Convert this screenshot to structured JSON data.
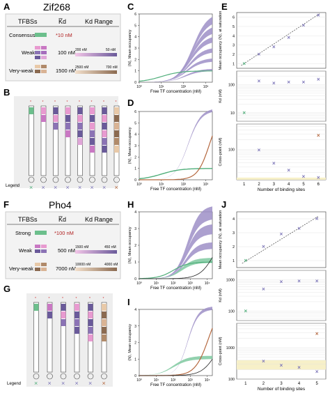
{
  "panel_letters": [
    "A",
    "B",
    "C",
    "D",
    "E",
    "F",
    "G",
    "H",
    "I",
    "J"
  ],
  "top": {
    "protein": "Zif268",
    "table": {
      "col_tfbs": "TFBSs",
      "col_kd": "K̅d",
      "col_range": "Kd Range",
      "rows": [
        {
          "name": "Consensus",
          "kd": "*10 nM",
          "range": ""
        },
        {
          "name": "Weak",
          "kd": "100 nM",
          "range_left": "200 nM",
          "range_right": "50 nM"
        },
        {
          "name": "Very-weak",
          "kd": "1500 nM",
          "range_left": "2500 nM",
          "range_right": "700 nM"
        }
      ]
    },
    "legend_label": "Legend",
    "legend_marks": [
      "×",
      "×",
      "×",
      "×",
      "×",
      "×",
      "×",
      "×"
    ]
  },
  "bottom": {
    "protein": "Pho4",
    "table": {
      "col_tfbs": "TFBSs",
      "col_kd": "K̅d",
      "col_range": "Kd Range",
      "rows": [
        {
          "name": "Strong",
          "kd": "*100 nM",
          "range": ""
        },
        {
          "name": "Weak",
          "kd": "500 nM",
          "range_left": "1500 nM",
          "range_right": "450 nM"
        },
        {
          "name": "Very-weak",
          "kd": "7000 nM",
          "range_left": "10000 nM",
          "range_right": "4000 nM"
        }
      ]
    },
    "legend_label": "Legend",
    "legend_marks": [
      "×",
      "×",
      "×",
      "×",
      "×",
      "×"
    ]
  },
  "colors": {
    "consensus": "#6cbf8c",
    "weak_dark": "#6a5a9a",
    "weak_light": "#e89ad0",
    "vweak_dark": "#8b6a50",
    "vweak_light": "#e8c9a8",
    "curve": "#9d8fc7",
    "green": "#4fae7a",
    "brown": "#b5683f",
    "marker": "#7b74b8"
  },
  "chart_data": [
    {
      "panel": "C",
      "type": "line",
      "ylabel": "⟨N⟩, Mean occupancy",
      "xlabel": "Free TF concentration (nM)",
      "x_scale": "log",
      "xlim": [
        1,
        2000
      ],
      "ylim": [
        0,
        6
      ],
      "xticks": [
        "10⁰",
        "10¹",
        "10²",
        "10³"
      ],
      "yticks": [
        "0",
        "1",
        "2",
        "3",
        "4",
        "5",
        "6"
      ]
    },
    {
      "panel": "D",
      "type": "line",
      "ylabel": "⟨N⟩, Mean occupancy",
      "xlabel": "Free TF concentration (nM)",
      "x_scale": "log",
      "xlim": [
        1,
        2000
      ],
      "ylim": [
        0,
        6
      ],
      "xticks": [
        "10⁰",
        "10¹",
        "10²",
        "10³"
      ],
      "yticks": [
        "0",
        "1",
        "2",
        "3",
        "4",
        "5",
        "6"
      ]
    },
    {
      "panel": "E-top",
      "type": "scatter",
      "ylabel": "Mean occupancy ⟨N⟩, at saturation",
      "x": [
        1,
        2,
        3,
        4,
        5,
        6
      ],
      "y": [
        1.0,
        2.0,
        2.8,
        3.8,
        5.1,
        6.2
      ],
      "ylim": [
        0.5,
        6.5
      ],
      "yticks": [
        "1",
        "2",
        "3",
        "4",
        "5",
        "6"
      ]
    },
    {
      "panel": "E-mid",
      "type": "scatter",
      "ylabel": "Kd (nM)",
      "y_scale": "log",
      "x": [
        1,
        2,
        3,
        4,
        5,
        6
      ],
      "y": [
        10,
        130,
        110,
        120,
        120,
        150
      ],
      "ylim": [
        5,
        300
      ],
      "yticks": [
        "10",
        "100"
      ]
    },
    {
      "panel": "E-bottom",
      "type": "scatter",
      "ylabel": "Cross-point (nM)",
      "y_scale": "log",
      "x": [
        2,
        3,
        4,
        5,
        6,
        6
      ],
      "y": [
        95,
        38,
        23,
        15,
        14,
        270
      ],
      "ylim": [
        12,
        600
      ],
      "yticks": [
        "100"
      ],
      "xlabel": "Number of binding sites",
      "xticks": [
        "1",
        "2",
        "3",
        "4",
        "5",
        "6"
      ]
    },
    {
      "panel": "H",
      "type": "line",
      "ylabel": "⟨N⟩, Mean occupancy",
      "xlabel": "Free TF concentration (nM)",
      "x_scale": "log",
      "xlim": [
        1,
        20000
      ],
      "ylim": [
        0,
        4
      ],
      "xticks": [
        "10⁰",
        "10¹",
        "10²",
        "10³",
        "10⁴"
      ],
      "yticks": [
        "0",
        "1",
        "2",
        "3",
        "4"
      ]
    },
    {
      "panel": "I",
      "type": "line",
      "ylabel": "⟨N⟩, Mean occupancy",
      "xlabel": "Free TF concentration (nM)",
      "x_scale": "log",
      "xlim": [
        1,
        20000
      ],
      "ylim": [
        0,
        4
      ],
      "xticks": [
        "10⁰",
        "10¹",
        "10²",
        "10³",
        "10⁴"
      ],
      "yticks": [
        "0",
        "1",
        "2",
        "3",
        "4"
      ]
    },
    {
      "panel": "J-top",
      "type": "scatter",
      "ylabel": "Mean occupancy ⟨N⟩, at saturation",
      "x": [
        1,
        2,
        3,
        4,
        5
      ],
      "y": [
        1.0,
        2.0,
        2.9,
        3.3,
        4.0
      ],
      "ylim": [
        0.5,
        4.5
      ],
      "yticks": [
        "1",
        "2",
        "3",
        "4"
      ]
    },
    {
      "panel": "J-mid",
      "type": "scatter",
      "ylabel": "Kd (nM)",
      "y_scale": "log",
      "x": [
        1,
        2,
        3,
        4,
        5
      ],
      "y": [
        100,
        500,
        850,
        900,
        900
      ],
      "ylim": [
        50,
        2000
      ],
      "yticks": [
        "100",
        "1000"
      ]
    },
    {
      "panel": "J-bottom",
      "type": "scatter",
      "ylabel": "Cross-point (nM)",
      "y_scale": "log",
      "x": [
        2,
        3,
        4,
        5,
        5
      ],
      "y": [
        370,
        270,
        230,
        170,
        2800
      ],
      "ylim": [
        100,
        6000
      ],
      "yticks": [
        "100",
        "1000"
      ],
      "xlabel": "Number of binding sites",
      "xticks": [
        "1",
        "2",
        "3",
        "4",
        "5"
      ]
    }
  ]
}
